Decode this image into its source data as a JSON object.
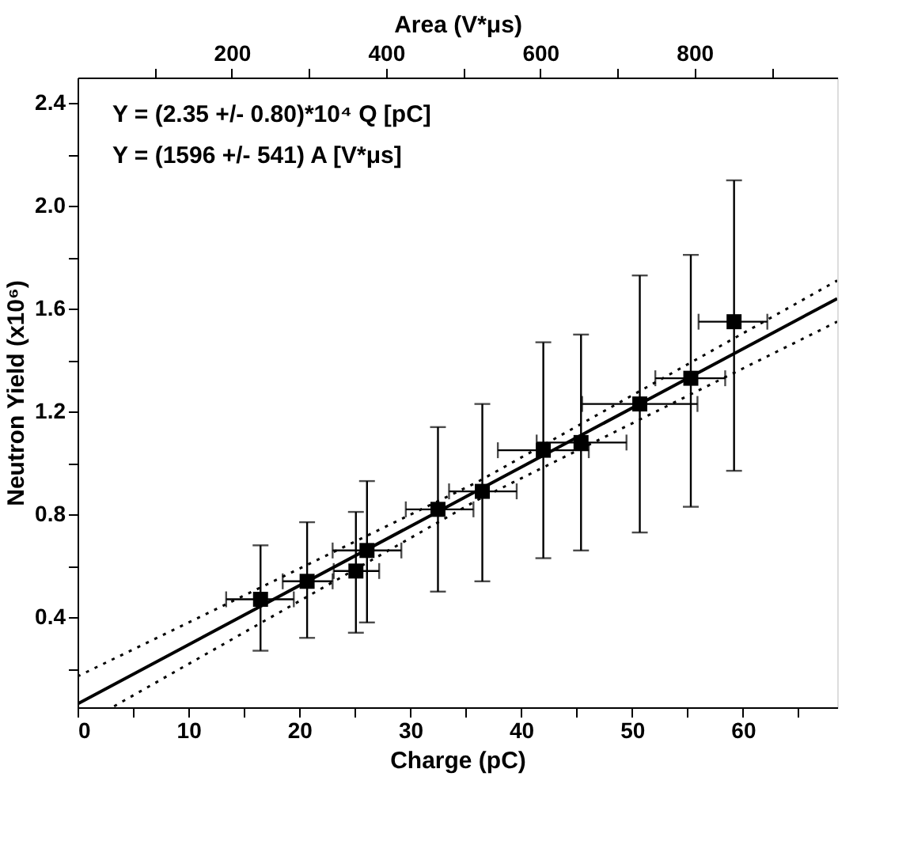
{
  "chart_data": {
    "type": "scatter",
    "xlabel": "Charge (pC)",
    "ylabel": "Neutron Yield (x10⁶)",
    "x2label": "Area (V*μs)",
    "xlim": [
      0,
      68.5
    ],
    "ylim": [
      0.05,
      2.5
    ],
    "x2lim": [
      0,
      985
    ],
    "xticks": [
      0,
      {
        "value": 5,
        "label": null
      },
      10,
      {
        "value": 15,
        "label": null
      },
      20,
      {
        "value": 25,
        "label": null
      },
      30,
      {
        "value": 35,
        "label": null
      },
      40,
      {
        "value": 45,
        "label": null
      },
      50,
      {
        "value": 55,
        "label": null
      },
      60,
      {
        "value": 65,
        "label": null
      }
    ],
    "yticks": [
      {
        "value": 0.2,
        "label": null
      },
      0.4,
      {
        "value": 0.6,
        "label": null
      },
      0.8,
      {
        "value": 1.0,
        "label": null
      },
      1.2,
      {
        "value": 1.4,
        "label": null
      },
      1.6,
      {
        "value": 1.8,
        "label": null
      },
      {
        "value": 2.0,
        "label": "2.0"
      },
      {
        "value": 2.2,
        "label": null
      },
      2.4
    ],
    "x2ticks": [
      {
        "value": 100,
        "label": null
      },
      200,
      {
        "value": 300,
        "label": null
      },
      400,
      {
        "value": 500,
        "label": null
      },
      600,
      {
        "value": 700,
        "label": null
      },
      800,
      {
        "value": 900,
        "label": null
      }
    ],
    "grid": false,
    "series": [
      {
        "marker": "square",
        "color": "#000000",
        "x": [
          16.5,
          20.7,
          25.1,
          26.1,
          32.5,
          36.5,
          42.0,
          45.4,
          50.7,
          55.3,
          59.2
        ],
        "values": [
          0.47,
          0.54,
          0.58,
          0.66,
          0.82,
          0.89,
          1.05,
          1.08,
          1.23,
          1.33,
          1.55
        ],
        "errors": [
          [
            0.27,
            0.68
          ],
          [
            0.32,
            0.77
          ],
          [
            0.34,
            0.81
          ],
          [
            0.38,
            0.93
          ],
          [
            0.5,
            1.14
          ],
          [
            0.54,
            1.23
          ],
          [
            0.63,
            1.47
          ],
          [
            0.66,
            1.5
          ],
          [
            0.73,
            1.73
          ],
          [
            0.83,
            1.81
          ],
          [
            0.97,
            2.1
          ]
        ],
        "xerrors": [
          [
            13.4,
            19.5
          ],
          [
            18.5,
            23.0
          ],
          [
            23.1,
            27.2
          ],
          [
            23.0,
            29.2
          ],
          [
            29.6,
            35.7
          ],
          [
            33.5,
            39.6
          ],
          [
            37.9,
            46.1
          ],
          [
            41.4,
            49.5
          ],
          [
            45.5,
            55.9
          ],
          [
            52.1,
            58.4
          ],
          [
            56.0,
            62.2
          ]
        ]
      },
      {
        "type": "line",
        "marker": "none",
        "color": "#000000",
        "line_style": "solid",
        "x": [
          0,
          68.5
        ],
        "values": [
          0.063,
          1.64
        ]
      },
      {
        "type": "line",
        "marker": "none",
        "color": "#000000",
        "line_style": "dotted",
        "x": [
          0,
          36,
          68.5
        ],
        "values": [
          0.17,
          0.925,
          1.71
        ]
      },
      {
        "type": "line",
        "marker": "none",
        "color": "#000000",
        "line_style": "dotted",
        "x": [
          3.3,
          36,
          68.5
        ],
        "values": [
          0.054,
          0.855,
          1.55
        ]
      }
    ],
    "annotations": [
      "Y = (2.35 +/- 0.80)*10⁴ Q [pC]",
      "Y = (1596 +/- 541) A [V*μs]"
    ]
  }
}
